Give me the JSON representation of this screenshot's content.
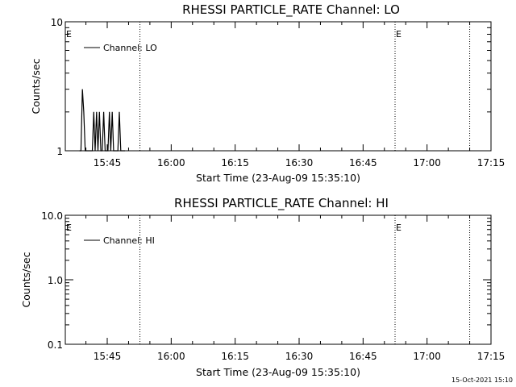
{
  "chart_data": [
    {
      "type": "line",
      "title": "RHESSI PARTICLE_RATE Channel: LO",
      "xlabel": "Start Time (23-Aug-09 15:35:10)",
      "ylabel": "Counts/sec",
      "yscale": "log",
      "ylim": [
        1,
        10
      ],
      "xlim": [
        "15:35:10",
        "17:15:00"
      ],
      "yticks": [
        "1",
        "10"
      ],
      "xticks": [
        "15:45",
        "16:00",
        "16:15",
        "16:30",
        "16:45",
        "17:00",
        "17:15"
      ],
      "legend": {
        "label": "Channel: LO",
        "position": "top-left"
      },
      "event_markers": [
        {
          "label": "E",
          "time": "15:35:10"
        },
        {
          "label": "E",
          "time": "16:52:30"
        }
      ],
      "dotted_lines": [
        "15:52:40",
        "16:52:30",
        "17:10:00"
      ],
      "series": [
        {
          "name": "Channel: LO",
          "x": [
            "15:38:30",
            "15:38:50",
            "15:39:10",
            "15:39:30",
            "15:39:50",
            "15:40:10",
            "15:40:30",
            "15:41:00",
            "15:41:30",
            "15:41:50",
            "15:42:10",
            "15:42:30",
            "15:42:50",
            "15:43:10",
            "15:43:30",
            "15:43:50",
            "15:44:10",
            "15:44:30",
            "15:44:50",
            "15:45:10",
            "15:45:30",
            "15:45:50",
            "15:46:10",
            "15:46:30",
            "15:46:50",
            "15:47:10",
            "15:47:30",
            "15:47:50",
            "15:48:10",
            "15:48:30",
            "15:48:50",
            "15:49:10"
          ],
          "values": [
            1,
            1,
            3,
            2,
            1,
            1,
            1,
            1,
            1,
            2,
            1,
            2,
            1,
            2,
            1,
            1,
            2,
            1,
            1,
            1,
            2,
            1,
            2,
            1,
            1,
            1,
            1,
            2,
            1,
            1,
            1,
            1
          ]
        }
      ]
    },
    {
      "type": "line",
      "title": "RHESSI PARTICLE_RATE Channel: HI",
      "xlabel": "Start Time (23-Aug-09 15:35:10)",
      "ylabel": "Counts/sec",
      "yscale": "log",
      "ylim": [
        0.1,
        10
      ],
      "xlim": [
        "15:35:10",
        "17:15:00"
      ],
      "yticks": [
        "0.1",
        "1.0",
        "10.0"
      ],
      "xticks": [
        "15:45",
        "16:00",
        "16:15",
        "16:30",
        "16:45",
        "17:00",
        "17:15"
      ],
      "legend": {
        "label": "Channel: HI",
        "position": "top-left"
      },
      "event_markers": [
        {
          "label": "E",
          "time": "15:35:10"
        },
        {
          "label": "E",
          "time": "16:52:30"
        }
      ],
      "dotted_lines": [
        "15:52:40",
        "16:52:30",
        "17:10:00"
      ],
      "series": [
        {
          "name": "Channel: HI",
          "x": [],
          "values": []
        }
      ]
    }
  ],
  "footer": {
    "timestamp": "15-Oct-2021 15:10"
  },
  "colors": {
    "background": "#ffffff",
    "ink": "#000000"
  }
}
